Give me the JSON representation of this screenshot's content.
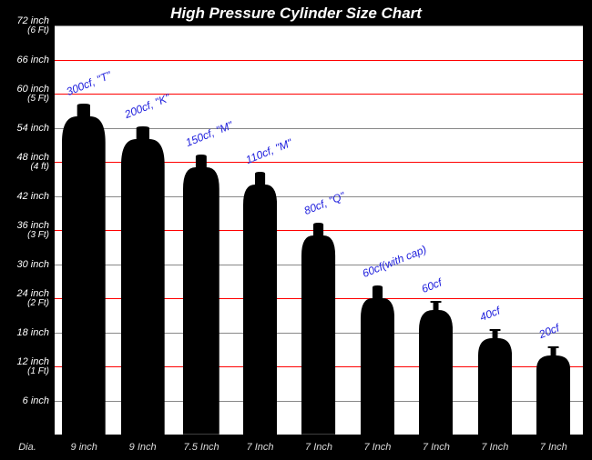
{
  "title": "High Pressure Cylinder Size Chart",
  "diameter_label": "Dia.",
  "background_color": "#000000",
  "plot_background": "#ffffff",
  "grid_color": "#888888",
  "accent_grid_color": "#ff0000",
  "title_color": "#ffffff",
  "axis_label_color": "#dddddd",
  "cyl_label_color": "#2020dd",
  "title_fontsize": 17,
  "label_fontsize": 12,
  "axis_fontsize": 11,
  "y_max_inches": 72,
  "y_ticks": [
    {
      "inch": 6,
      "label": "6 inch",
      "sub": ""
    },
    {
      "inch": 12,
      "label": "12 inch",
      "sub": "(1 Ft)"
    },
    {
      "inch": 18,
      "label": "18 inch",
      "sub": ""
    },
    {
      "inch": 24,
      "label": "24 inch",
      "sub": "(2 Ft)"
    },
    {
      "inch": 30,
      "label": "30 inch",
      "sub": ""
    },
    {
      "inch": 36,
      "label": "36 inch",
      "sub": "(3 Ft)"
    },
    {
      "inch": 42,
      "label": "42 inch",
      "sub": ""
    },
    {
      "inch": 48,
      "label": "48 inch",
      "sub": "(4 ft)"
    },
    {
      "inch": 54,
      "label": "54 inch",
      "sub": ""
    },
    {
      "inch": 60,
      "label": "60 inch",
      "sub": "(5 Ft)"
    },
    {
      "inch": 66,
      "label": "66 inch",
      "sub": ""
    },
    {
      "inch": 72,
      "label": "72 inch",
      "sub": "(6 Ft)"
    }
  ],
  "accent_lines_inch": [
    12,
    24,
    36,
    48,
    60,
    66
  ],
  "cylinders": [
    {
      "label": "300cf, \"T\"",
      "height_in": 56,
      "dia_in": 9.0,
      "dia_label": "9 inch",
      "cap": true
    },
    {
      "label": "200cf, \"K\"",
      "height_in": 52,
      "dia_in": 9.0,
      "dia_label": "9 Inch",
      "cap": true
    },
    {
      "label": "150cf, \"M\"",
      "height_in": 47,
      "dia_in": 7.5,
      "dia_label": "7.5 Inch",
      "cap": true
    },
    {
      "label": "110cf, \"M\"",
      "height_in": 44,
      "dia_in": 7.0,
      "dia_label": "7 Inch",
      "cap": true
    },
    {
      "label": "80cf, \"Q\"",
      "height_in": 35,
      "dia_in": 7.0,
      "dia_label": "7 Inch",
      "cap": true
    },
    {
      "label": "60cf(with cap)",
      "height_in": 24,
      "dia_in": 7.0,
      "dia_label": "7 Inch",
      "cap": true
    },
    {
      "label": "60cf",
      "height_in": 22,
      "dia_in": 7.0,
      "dia_label": "7 Inch",
      "cap": false
    },
    {
      "label": "40cf",
      "height_in": 17,
      "dia_in": 7.0,
      "dia_label": "7 Inch",
      "cap": false
    },
    {
      "label": "20cf",
      "height_in": 14,
      "dia_in": 7.0,
      "dia_label": "7 Inch",
      "cap": false
    }
  ]
}
